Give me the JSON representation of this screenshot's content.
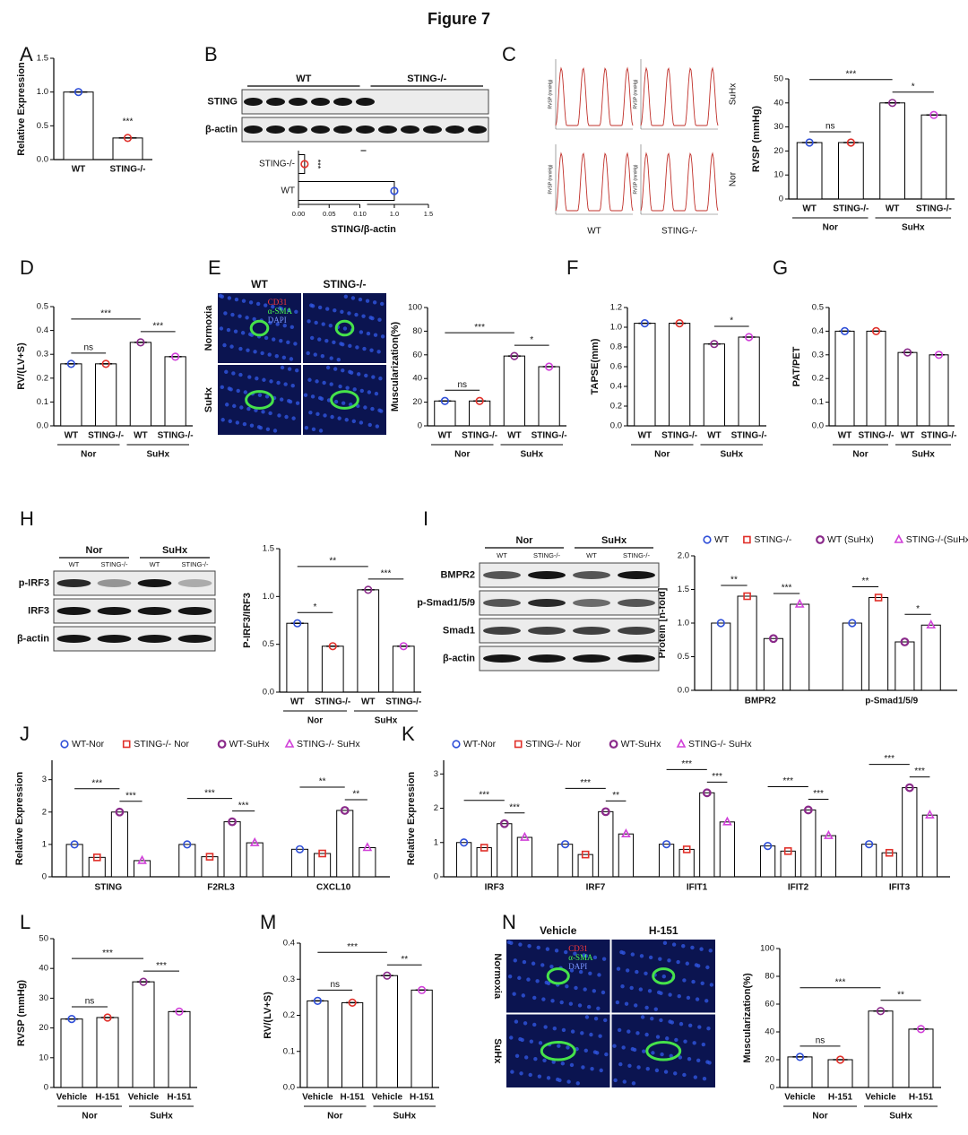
{
  "title": "Figure 7",
  "chart_data": [
    {
      "type": "bar",
      "label": "A",
      "ylabel": "Relative Expression",
      "categories": [
        "WT",
        "STING-/-"
      ],
      "colors": [
        "#2f4fd8",
        "#e0302a"
      ],
      "values": [
        1.0,
        0.32
      ],
      "ylim": [
        0,
        1.5
      ],
      "yticks": [
        {
          "value": 0,
          "label": "0.0"
        },
        0.5,
        {
          "value": 1,
          "label": "1.0"
        },
        1.5
      ],
      "significance": [
        {
          "text": "***",
          "bars": [
            1
          ]
        }
      ]
    },
    {
      "type": "hbar",
      "xlabel": "STING/β-actin",
      "categories": [
        "STING-/-",
        "WT"
      ],
      "colors": [
        "#e0302a",
        "#2f4fd8"
      ],
      "values": [
        0.01,
        1.0
      ],
      "xlim": [
        0,
        1.5
      ],
      "xbreak": [
        0.1,
        0.6
      ],
      "xticks": [
        {
          "value": 0,
          "label": "0.00"
        },
        0.05,
        {
          "value": 0.1,
          "label": "0.10"
        },
        {
          "value": 1,
          "label": "1.0"
        },
        1.5
      ],
      "significance": [
        {
          "text": "***",
          "bars": [
            0
          ]
        }
      ]
    },
    {
      "type": "bar",
      "ylabel": "RVSP (mmHg)",
      "categories": [
        "WT",
        "STING-/-",
        "WT",
        "STING-/-"
      ],
      "groups": [
        "Nor",
        "SuHx"
      ],
      "colors": [
        "#2f4fd8",
        "#e0302a",
        "#8a2a8a",
        "#d040d8"
      ],
      "values": [
        23.5,
        23.5,
        40,
        35
      ],
      "ylim": [
        0,
        50
      ],
      "yticks": [
        0,
        10,
        20,
        30,
        40,
        50
      ],
      "significance": [
        {
          "text": "ns",
          "bars": [
            0,
            1
          ]
        },
        {
          "text": "***",
          "bars": [
            0,
            2
          ]
        },
        {
          "text": "*",
          "bars": [
            2,
            3
          ]
        }
      ]
    },
    {
      "type": "bar",
      "label": "D",
      "ylabel": "RV/(LV+S)",
      "categories": [
        "WT",
        "STING-/-",
        "WT",
        "STING-/-"
      ],
      "groups": [
        "Nor",
        "SuHx"
      ],
      "colors": [
        "#2f4fd8",
        "#e0302a",
        "#8a2a8a",
        "#d040d8"
      ],
      "values": [
        0.26,
        0.26,
        0.35,
        0.29
      ],
      "ylim": [
        0,
        0.5
      ],
      "yticks": [
        {
          "value": 0,
          "label": "0.0"
        },
        0.1,
        0.2,
        0.3,
        0.4,
        0.5
      ],
      "significance": [
        {
          "text": "ns",
          "bars": [
            0,
            1
          ]
        },
        {
          "text": "***",
          "bars": [
            0,
            2
          ]
        },
        {
          "text": "***",
          "bars": [
            2,
            3
          ]
        }
      ]
    },
    {
      "type": "bar",
      "ylabel": "Muscularization(%)",
      "categories": [
        "WT",
        "STING-/-",
        "WT",
        "STING-/-"
      ],
      "groups": [
        "Nor",
        "SuHx"
      ],
      "colors": [
        "#2f4fd8",
        "#e0302a",
        "#8a2a8a",
        "#d040d8"
      ],
      "values": [
        21,
        21,
        59,
        50
      ],
      "ylim": [
        0,
        100
      ],
      "yticks": [
        0,
        20,
        40,
        60,
        80,
        100
      ],
      "significance": [
        {
          "text": "ns",
          "bars": [
            0,
            1
          ]
        },
        {
          "text": "***",
          "bars": [
            0,
            2
          ]
        },
        {
          "text": "*",
          "bars": [
            2,
            3
          ]
        }
      ]
    },
    {
      "type": "bar",
      "label": "F",
      "ylabel": "TAPSE(mm)",
      "categories": [
        "WT",
        "STING-/-",
        "WT",
        "STING-/-"
      ],
      "groups": [
        "Nor",
        "SuHx"
      ],
      "colors": [
        "#2f4fd8",
        "#e0302a",
        "#8a2a8a",
        "#d040d8"
      ],
      "values": [
        1.04,
        1.04,
        0.83,
        0.9
      ],
      "ylim": [
        0,
        1.2
      ],
      "yticks": [
        {
          "value": 0,
          "label": "0.0"
        },
        0.2,
        0.4,
        0.6,
        0.8,
        {
          "value": 1,
          "label": "1.0"
        },
        1.2
      ],
      "significance": [
        {
          "text": "*",
          "bars": [
            2,
            3
          ]
        }
      ]
    },
    {
      "type": "bar",
      "label": "G",
      "ylabel": "PAT/PET",
      "categories": [
        "WT",
        "STING-/-",
        "WT",
        "STING-/-"
      ],
      "groups": [
        "Nor",
        "SuHx"
      ],
      "colors": [
        "#2f4fd8",
        "#e0302a",
        "#8a2a8a",
        "#d040d8"
      ],
      "values": [
        0.4,
        0.4,
        0.31,
        0.3
      ],
      "ylim": [
        0,
        0.5
      ],
      "yticks": [
        {
          "value": 0,
          "label": "0.0"
        },
        0.1,
        0.2,
        0.3,
        0.4,
        0.5
      ]
    },
    {
      "type": "bar",
      "ylabel": "P-IRF3/IRF3",
      "categories": [
        "WT",
        "STING-/-",
        "WT",
        "STING-/-"
      ],
      "groups": [
        "Nor",
        "SuHx"
      ],
      "colors": [
        "#2f4fd8",
        "#e0302a",
        "#8a2a8a",
        "#d040d8"
      ],
      "values": [
        0.72,
        0.48,
        1.07,
        0.48
      ],
      "ylim": [
        0,
        1.5
      ],
      "yticks": [
        {
          "value": 0,
          "label": "0.0"
        },
        0.5,
        {
          "value": 1,
          "label": "1.0"
        },
        1.5
      ],
      "significance": [
        {
          "text": "*",
          "bars": [
            0,
            1
          ]
        },
        {
          "text": "**",
          "bars": [
            0,
            2
          ]
        },
        {
          "text": "***",
          "bars": [
            2,
            3
          ]
        }
      ]
    },
    {
      "type": "grouped_bar",
      "ylabel": "Protein [n-fold]",
      "categories": [
        "BMPR2",
        "p-Smad1/5/9"
      ],
      "series": [
        {
          "name": "WT",
          "color": "#2f4fd8",
          "marker": "circle",
          "values": [
            1.0,
            1.0
          ]
        },
        {
          "name": "STING-/-",
          "color": "#e0302a",
          "marker": "square",
          "values": [
            1.4,
            1.38
          ]
        },
        {
          "name": "WT (SuHx)",
          "color": "#8a2a8a",
          "marker": "hexagon",
          "values": [
            0.77,
            0.72
          ]
        },
        {
          "name": "STING-/-(SuHx)",
          "color": "#d040d8",
          "marker": "triangle",
          "values": [
            1.28,
            0.97
          ]
        }
      ],
      "ylim": [
        0,
        2.0
      ],
      "yticks": [
        {
          "value": 0,
          "label": "0.0"
        },
        0.5,
        {
          "value": 1,
          "label": "1.0"
        },
        1.5,
        {
          "value": 2,
          "label": "2.0"
        }
      ],
      "significance": [
        {
          "text": "**",
          "category": 0,
          "series": [
            0,
            1
          ]
        },
        {
          "text": "***",
          "category": 0,
          "series": [
            2,
            3
          ]
        },
        {
          "text": "**",
          "category": 1,
          "series": [
            0,
            1
          ]
        },
        {
          "text": "*",
          "category": 1,
          "series": [
            2,
            3
          ]
        }
      ]
    },
    {
      "type": "grouped_bar",
      "label": "J",
      "ylabel": "Relative Expression",
      "categories": [
        "STING",
        "F2RL3",
        "CXCL10"
      ],
      "series": [
        {
          "name": "WT-Nor",
          "color": "#2f4fd8",
          "marker": "circle",
          "values": [
            1.0,
            1.0,
            0.85
          ]
        },
        {
          "name": "STING-/- Nor",
          "color": "#e0302a",
          "marker": "square",
          "values": [
            0.6,
            0.62,
            0.72
          ]
        },
        {
          "name": "WT-SuHx",
          "color": "#8a2a8a",
          "marker": "hexagon",
          "values": [
            2.0,
            1.7,
            2.05
          ]
        },
        {
          "name": "STING-/- SuHx",
          "color": "#d040d8",
          "marker": "triangle",
          "values": [
            0.5,
            1.05,
            0.9
          ]
        }
      ],
      "ylim": [
        0,
        3.6
      ],
      "yticks": [
        0,
        1,
        2,
        3
      ],
      "significance": [
        {
          "text": "***",
          "category": 0,
          "series": [
            0,
            2
          ]
        },
        {
          "text": "***",
          "category": 0,
          "series": [
            2,
            3
          ]
        },
        {
          "text": "***",
          "category": 1,
          "series": [
            0,
            2
          ]
        },
        {
          "text": "***",
          "category": 1,
          "series": [
            2,
            3
          ]
        },
        {
          "text": "**",
          "category": 2,
          "series": [
            0,
            2
          ]
        },
        {
          "text": "**",
          "category": 2,
          "series": [
            2,
            3
          ]
        }
      ]
    },
    {
      "type": "grouped_bar",
      "label": "K",
      "ylabel": "Relative Expression",
      "categories": [
        "IRF3",
        "IRF7",
        "IFIT1",
        "IFIT2",
        "IFIT3"
      ],
      "series": [
        {
          "name": "WT-Nor",
          "color": "#2f4fd8",
          "marker": "circle",
          "values": [
            1.0,
            0.95,
            0.95,
            0.9,
            0.95
          ]
        },
        {
          "name": "STING-/- Nor",
          "color": "#e0302a",
          "marker": "square",
          "values": [
            0.85,
            0.65,
            0.8,
            0.75,
            0.7
          ]
        },
        {
          "name": "WT-SuHx",
          "color": "#8a2a8a",
          "marker": "hexagon",
          "values": [
            1.55,
            1.9,
            2.45,
            1.95,
            2.6
          ]
        },
        {
          "name": "STING-/- SuHx",
          "color": "#d040d8",
          "marker": "triangle",
          "values": [
            1.15,
            1.25,
            1.6,
            1.2,
            1.8
          ]
        }
      ],
      "ylim": [
        0,
        3.4
      ],
      "yticks": [
        0,
        1,
        2,
        3
      ],
      "significance": [
        {
          "text": "***",
          "category": 0,
          "series": [
            0,
            2
          ]
        },
        {
          "text": "***",
          "category": 0,
          "series": [
            2,
            3
          ]
        },
        {
          "text": "***",
          "category": 1,
          "series": [
            0,
            2
          ]
        },
        {
          "text": "**",
          "category": 1,
          "series": [
            2,
            3
          ]
        },
        {
          "text": "***",
          "category": 2,
          "series": [
            0,
            2
          ]
        },
        {
          "text": "***",
          "category": 2,
          "series": [
            2,
            3
          ]
        },
        {
          "text": "***",
          "category": 3,
          "series": [
            0,
            2
          ]
        },
        {
          "text": "***",
          "category": 3,
          "series": [
            2,
            3
          ]
        },
        {
          "text": "***",
          "category": 4,
          "series": [
            0,
            2
          ]
        },
        {
          "text": "***",
          "category": 4,
          "series": [
            2,
            3
          ]
        }
      ]
    },
    {
      "type": "bar",
      "label": "L",
      "ylabel": "RVSP (mmHg)",
      "categories": [
        "Vehicle",
        "H-151",
        "Vehicle",
        "H-151"
      ],
      "groups": [
        "Nor",
        "SuHx"
      ],
      "colors": [
        "#2f4fd8",
        "#e0302a",
        "#8a2a8a",
        "#d040d8"
      ],
      "values": [
        23,
        23.5,
        35.5,
        25.5
      ],
      "ylim": [
        0,
        50
      ],
      "yticks": [
        0,
        10,
        20,
        30,
        40,
        50
      ],
      "significance": [
        {
          "text": "ns",
          "bars": [
            0,
            1
          ]
        },
        {
          "text": "***",
          "bars": [
            0,
            2
          ]
        },
        {
          "text": "***",
          "bars": [
            2,
            3
          ]
        }
      ]
    },
    {
      "type": "bar",
      "label": "M",
      "ylabel": "RV/(LV+S)",
      "categories": [
        "Vehicle",
        "H-151",
        "Vehicle",
        "H-151"
      ],
      "groups": [
        "Nor",
        "SuHx"
      ],
      "colors": [
        "#2f4fd8",
        "#e0302a",
        "#8a2a8a",
        "#d040d8"
      ],
      "values": [
        0.24,
        0.235,
        0.31,
        0.27
      ],
      "ylim": [
        0,
        0.4
      ],
      "yticks": [
        {
          "value": 0,
          "label": "0.0"
        },
        0.1,
        0.2,
        0.3,
        0.4
      ],
      "significance": [
        {
          "text": "ns",
          "bars": [
            0,
            1
          ]
        },
        {
          "text": "***",
          "bars": [
            0,
            2
          ]
        },
        {
          "text": "**",
          "bars": [
            2,
            3
          ]
        }
      ]
    },
    {
      "type": "bar",
      "ylabel": "Muscularization(%)",
      "categories": [
        "Vehicle",
        "H-151",
        "Vehicle",
        "H-151"
      ],
      "groups": [
        "Nor",
        "SuHx"
      ],
      "colors": [
        "#2f4fd8",
        "#e0302a",
        "#8a2a8a",
        "#d040d8"
      ],
      "values": [
        22,
        20,
        55,
        42
      ],
      "ylim": [
        0,
        100
      ],
      "yticks": [
        0,
        20,
        40,
        60,
        80,
        100
      ],
      "significance": [
        {
          "text": "ns",
          "bars": [
            0,
            1
          ]
        },
        {
          "text": "***",
          "bars": [
            0,
            2
          ]
        },
        {
          "text": "**",
          "bars": [
            2,
            3
          ]
        }
      ]
    }
  ],
  "images": [
    {
      "kind": "blot",
      "label": "B",
      "groups": [
        "WT",
        "STING-/-"
      ],
      "rows": [
        "STING",
        "β-actin"
      ]
    },
    {
      "kind": "traces",
      "label": "C",
      "axis_label": "RVSP (mmHg)",
      "columns": [
        "WT",
        "STING-/-"
      ],
      "rows": [
        "SuHx",
        "Nor"
      ]
    },
    {
      "kind": "micrograph",
      "label": "E",
      "columns": [
        "WT",
        "STING-/-"
      ],
      "rows": [
        "Normoxia",
        "SuHx"
      ],
      "stains": [
        "CD31",
        "α-SMA",
        "DAPI"
      ]
    },
    {
      "kind": "blot",
      "label": "H",
      "groups": [
        "Nor",
        "SuHx"
      ],
      "lanes": [
        "WT",
        "STING-/-",
        "WT",
        "STING-/-"
      ],
      "rows": [
        "p-IRF3",
        "IRF3",
        "β-actin"
      ]
    },
    {
      "kind": "blot",
      "label": "I",
      "groups": [
        "Nor",
        "SuHx"
      ],
      "lanes": [
        "WT",
        "STING-/-",
        "WT",
        "STING-/-"
      ],
      "rows": [
        "BMPR2",
        "p-Smad1/5/9",
        "Smad1",
        "β-actin"
      ]
    },
    {
      "kind": "micrograph",
      "label": "N",
      "columns": [
        "Vehicle",
        "H-151"
      ],
      "rows": [
        "Normoxia",
        "SuHx"
      ],
      "stains": [
        "CD31",
        "α-SMA",
        "DAPI"
      ]
    }
  ]
}
